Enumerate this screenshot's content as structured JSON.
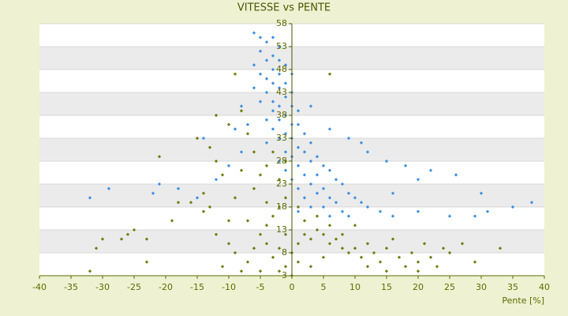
{
  "chart_data": {
    "type": "scatter",
    "title": "VITESSE vs PENTE",
    "x_label": "Pente [%]",
    "xlim": [
      -40,
      40
    ],
    "xticks": [
      -40,
      -35,
      -30,
      -25,
      -20,
      -15,
      -10,
      -5,
      0,
      5,
      10,
      15,
      20,
      25,
      30,
      35,
      40
    ],
    "ylim": [
      3,
      58
    ],
    "yticks": [
      3,
      8,
      13,
      18,
      23,
      28,
      33,
      38,
      43,
      48,
      53,
      58
    ],
    "grid": true,
    "series": [
      {
        "color": "#3c8ee0",
        "x": [
          -6,
          -5,
          -4,
          -3,
          -2,
          -5,
          -3,
          -4,
          -2,
          -6,
          -1,
          -3,
          -5,
          -2,
          0,
          -4,
          -1,
          -3,
          -6,
          -2,
          0,
          -4,
          -1,
          -3,
          -5,
          -2,
          0,
          1,
          -3,
          -1,
          -4,
          -2,
          0,
          1,
          -3,
          -1,
          2,
          -2,
          0,
          3,
          -4,
          1,
          -1,
          2,
          4,
          0,
          -2,
          3,
          5,
          1,
          6,
          -1,
          2,
          4,
          7,
          0,
          3,
          8,
          5,
          1,
          9,
          4,
          6,
          10,
          2,
          7,
          11,
          3,
          5,
          12,
          8,
          14,
          1,
          6,
          9,
          16,
          20,
          25,
          29,
          31,
          38,
          -32,
          -29,
          -22,
          -21,
          -18,
          -15,
          -12,
          -10,
          -8,
          -14,
          -7,
          12,
          15,
          18,
          22,
          26,
          11,
          -8,
          -9,
          6,
          9,
          16,
          20,
          3,
          35,
          30
        ],
        "values": [
          56,
          55,
          54,
          55,
          53,
          52,
          51,
          50,
          50,
          49,
          49,
          48,
          47,
          47,
          47,
          46,
          45,
          45,
          44,
          44,
          43,
          43,
          42,
          41,
          41,
          40,
          40,
          39,
          39,
          38,
          37,
          37,
          36,
          36,
          35,
          34,
          34,
          33,
          33,
          32,
          32,
          31,
          30,
          30,
          29,
          29,
          28,
          28,
          27,
          27,
          26,
          26,
          25,
          25,
          24,
          24,
          23,
          23,
          22,
          22,
          21,
          21,
          20,
          20,
          20,
          19,
          19,
          18,
          18,
          18,
          17,
          17,
          17,
          16,
          16,
          16,
          17,
          16,
          16,
          17,
          19,
          20,
          22,
          21,
          23,
          22,
          20,
          24,
          27,
          30,
          33,
          36,
          30,
          28,
          27,
          26,
          25,
          32,
          40,
          35,
          35,
          33,
          21,
          24,
          40,
          18,
          21
        ]
      },
      {
        "color": "#6b7d0e",
        "x": [
          -32,
          -31,
          -30,
          -26,
          -25,
          -27,
          -23,
          -23,
          -19,
          -21,
          -15,
          -13,
          -12,
          -11,
          -14,
          -13,
          -12,
          -10,
          -9,
          -8,
          -11,
          -7,
          -6,
          -5,
          -4,
          -3,
          -2,
          -1,
          -6,
          -5,
          -4,
          -3,
          -8,
          -9,
          -7,
          -4,
          -3,
          -2,
          -1,
          0,
          1,
          2,
          3,
          4,
          5,
          6,
          7,
          8,
          9,
          10,
          11,
          12,
          13,
          14,
          15,
          16,
          17,
          18,
          19,
          20,
          21,
          22,
          23,
          24,
          25,
          27,
          29,
          33,
          2,
          4,
          6,
          1,
          3,
          5,
          8,
          10,
          -1,
          -2,
          0,
          -6,
          -7,
          -10,
          -8,
          -14,
          -16,
          -18,
          -5,
          -10,
          6,
          -9,
          15,
          12,
          20,
          -2,
          -4,
          1,
          -12,
          -1
        ],
        "values": [
          4,
          9,
          11,
          12,
          13,
          11,
          11,
          6,
          15,
          29,
          33,
          31,
          28,
          25,
          21,
          18,
          12,
          10,
          8,
          4,
          5,
          6,
          9,
          12,
          14,
          16,
          18,
          20,
          22,
          25,
          27,
          30,
          26,
          20,
          15,
          10,
          7,
          4,
          5,
          8,
          10,
          12,
          11,
          13,
          12,
          10,
          11,
          9,
          8,
          9,
          7,
          10,
          8,
          6,
          9,
          11,
          7,
          5,
          8,
          6,
          10,
          7,
          5,
          9,
          8,
          10,
          6,
          9,
          15,
          16,
          14,
          6,
          5,
          7,
          12,
          14,
          12,
          9,
          3,
          30,
          34,
          36,
          39,
          17,
          19,
          19,
          4,
          15,
          47,
          47,
          4,
          5,
          4,
          24,
          19,
          18,
          38,
          28
        ]
      }
    ]
  }
}
